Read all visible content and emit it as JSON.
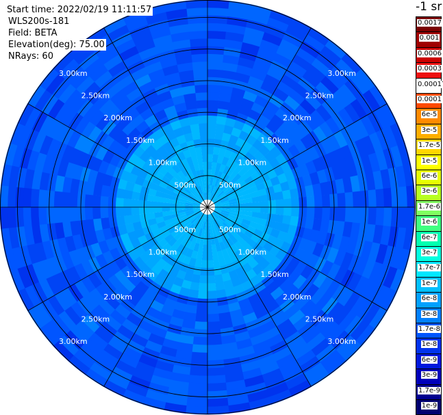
{
  "header": {
    "start_time": "Start time: 2022/02/19 11:11:57",
    "instrument": "WLS200s-181",
    "field": "Field: BETA",
    "elevation": "Elevation(deg): 75.00",
    "nrays": "NRays: 60"
  },
  "colorbar": {
    "unit": "-1 sr",
    "labels": [
      "0.0017",
      "0.001",
      "0.0006",
      "0.0003",
      "0.00017",
      "0.0001",
      "6e-5",
      "3e-5",
      "1.7e-5",
      "1e-5",
      "6e-6",
      "3e-6",
      "1.7e-6",
      "1e-6",
      "6e-7",
      "3e-7",
      "1.7e-7",
      "1e-7",
      "6e-8",
      "3e-8",
      "1.7e-8",
      "1e-8",
      "6e-9",
      "3e-9",
      "1.7e-9",
      "1e-9"
    ],
    "colors": [
      "#7a0000",
      "#a00000",
      "#cc0000",
      "#ee1010",
      "#ffffff",
      "#ff4a00",
      "#ff8a00",
      "#ffae00",
      "#ffd700",
      "#ffff00",
      "#e6ff00",
      "#b8ff20",
      "#80ff60",
      "#40ff80",
      "#00ffb0",
      "#00ffe0",
      "#00e6ff",
      "#00c0ff",
      "#00a0ff",
      "#0080ff",
      "#0055ff",
      "#0033ee",
      "#0018dd",
      "#0000bb",
      "#000090",
      "#000070"
    ]
  },
  "range_rings": {
    "labels": [
      "500m",
      "1.00km",
      "1.50km",
      "2.00km",
      "2.50km",
      "3.00km"
    ]
  }
}
